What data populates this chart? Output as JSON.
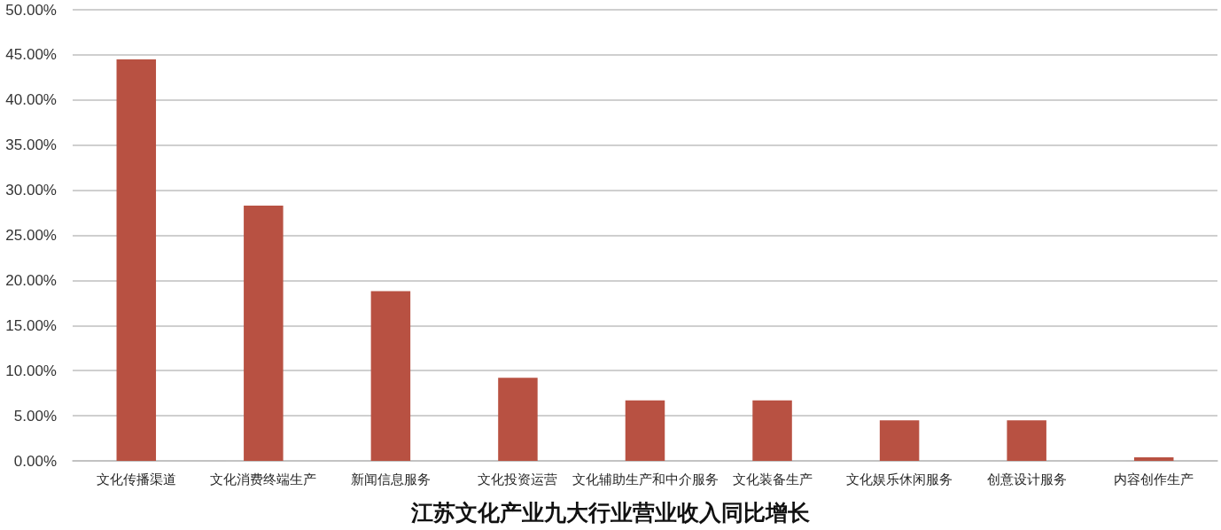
{
  "chart_data": {
    "type": "bar",
    "title": "江苏文化产业九大行业营业收入同比增长",
    "categories": [
      "文化传播渠道",
      "文化消费终端生产",
      "新闻信息服务",
      "文化投资运营",
      "文化辅助生产和中介服务",
      "文化装备生产",
      "文化娱乐休闲服务",
      "创意设计服务",
      "内容创作生产"
    ],
    "values": [
      44.5,
      28.3,
      18.8,
      9.2,
      6.7,
      6.7,
      4.5,
      4.5,
      0.4
    ],
    "color": "#b85142",
    "ylim": [
      0,
      50
    ],
    "yticks": [
      {
        "value": 0,
        "label": "0.00%"
      },
      {
        "value": 5,
        "label": "5.00%"
      },
      {
        "value": 10,
        "label": "10.00%"
      },
      {
        "value": 15,
        "label": "15.00%"
      },
      {
        "value": 20,
        "label": "20.00%"
      },
      {
        "value": 25,
        "label": "25.00%"
      },
      {
        "value": 30,
        "label": "30.00%"
      },
      {
        "value": 35,
        "label": "35.00%"
      },
      {
        "value": 40,
        "label": "40.00%"
      },
      {
        "value": 45,
        "label": "45.00%"
      },
      {
        "value": 50,
        "label": "50.00%"
      }
    ],
    "grid": "y"
  }
}
